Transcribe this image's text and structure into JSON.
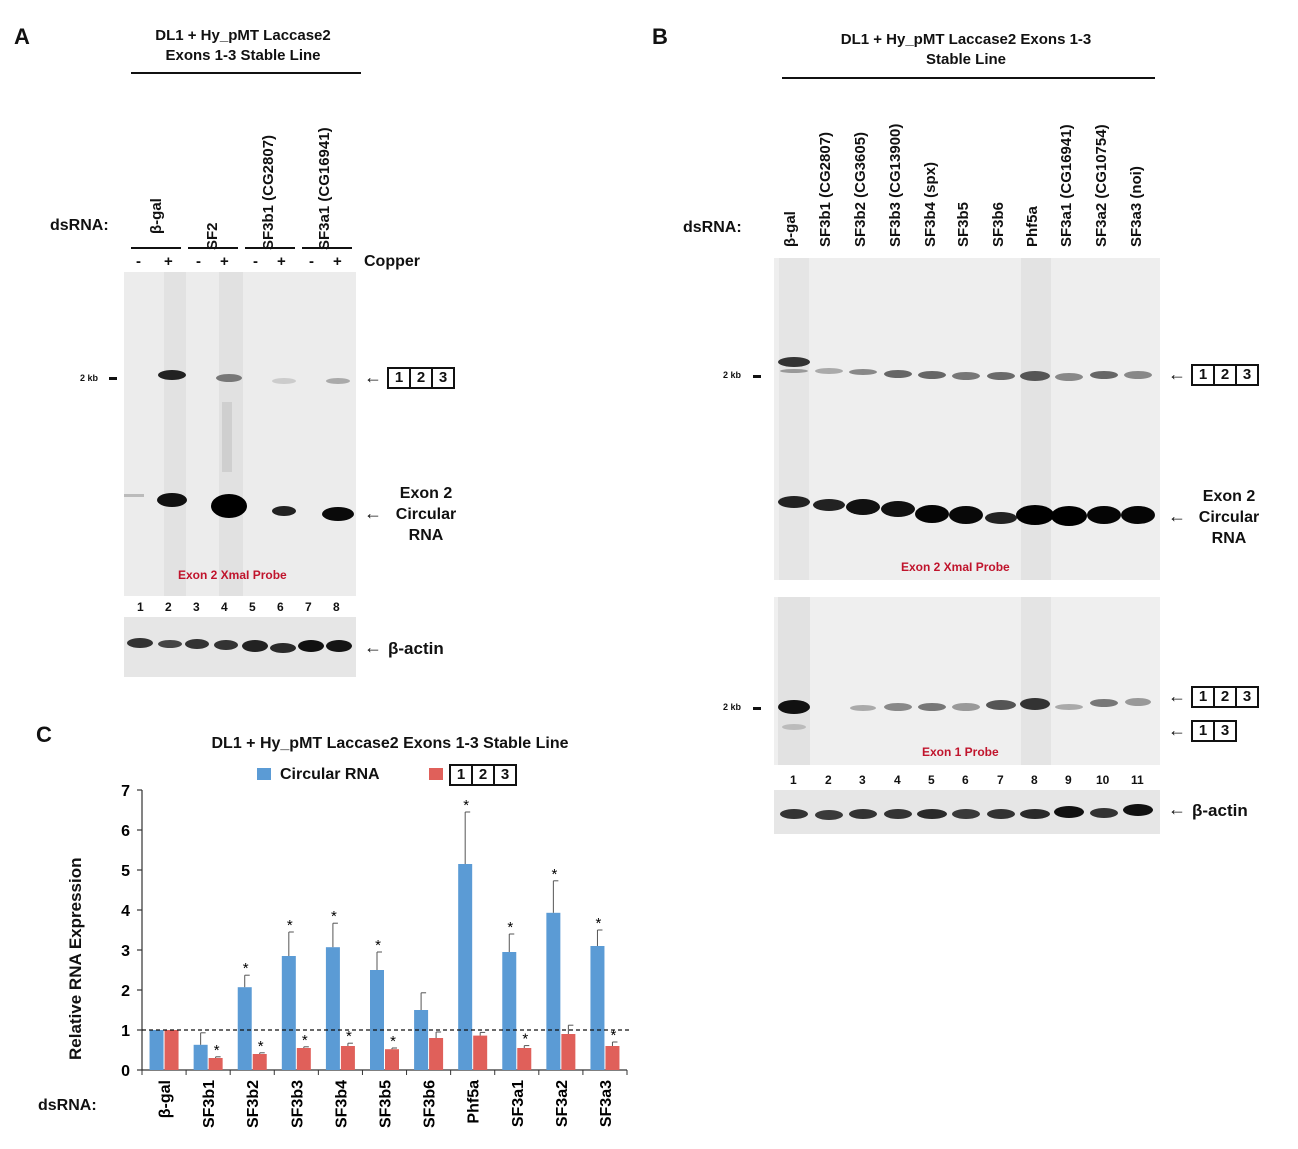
{
  "panel_a": {
    "letter": "A",
    "title_line1": "DL1 + Hy_pMT Laccase2",
    "title_line2": "Exons 1-3 Stable Line",
    "dsrna_label": "dsRNA:",
    "groups": [
      "β-gal",
      "SF2",
      "SF3b1 (CG2807)",
      "SF3a1 (CG16941)"
    ],
    "copper_signs": [
      "-",
      "+",
      "-",
      "+",
      "-",
      "+",
      "-",
      "+"
    ],
    "copper_label": "Copper",
    "marker": "2 kb",
    "linear_box": [
      "1",
      "2",
      "3"
    ],
    "circ_line1": "Exon 2",
    "circ_line2": "Circular",
    "circ_line3": "RNA",
    "probe": "Exon 2 XmaI Probe",
    "lanes": [
      "1",
      "2",
      "3",
      "4",
      "5",
      "6",
      "7",
      "8"
    ],
    "actin_label": "β-actin"
  },
  "panel_b": {
    "letter": "B",
    "title_line1": "DL1 + Hy_pMT Laccase2 Exons 1-3",
    "title_line2": "Stable Line",
    "dsrna_label": "dsRNA:",
    "lane_labels": [
      "β-gal",
      "SF3b1 (CG2807)",
      "SF3b2 (CG3605)",
      "SF3b3 (CG13900)",
      "SF3b4 (spx)",
      "SF3b5",
      "SF3b6",
      "Phf5a",
      "SF3a1 (CG16941)",
      "SF3a2 (CG10754)",
      "SF3a3 (noi)"
    ],
    "marker_top": "2 kb",
    "marker_bottom": "2 kb",
    "linear_box": [
      "1",
      "2",
      "3"
    ],
    "skip_box": [
      "1",
      "3"
    ],
    "circ_line1": "Exon 2",
    "circ_line2": "Circular",
    "circ_line3": "RNA",
    "probe_top": "Exon 2 XmaI Probe",
    "probe_bottom": "Exon 1 Probe",
    "lanes": [
      "1",
      "2",
      "3",
      "4",
      "5",
      "6",
      "7",
      "8",
      "9",
      "10",
      "11"
    ],
    "actin_label": "β-actin"
  },
  "panel_c": {
    "letter": "C",
    "dsrna_label": "dsRNA:"
  },
  "chart_data": {
    "type": "bar",
    "title": "DL1 + Hy_pMT Laccase2 Exons 1-3 Stable Line",
    "ylabel": "Relative RNA Expression",
    "xlabel": "",
    "ylim": [
      0,
      7
    ],
    "yticks": [
      "0",
      "1",
      "2",
      "3",
      "4",
      "5",
      "6",
      "7"
    ],
    "reference_line": 1,
    "categories": [
      "β-gal",
      "SF3b1",
      "SF3b2",
      "SF3b3",
      "SF3b4",
      "SF3b5",
      "SF3b6",
      "Phf5a",
      "SF3a1",
      "SF3a2",
      "SF3a3"
    ],
    "legend_circ": "Circular RNA",
    "legend_linear_box": [
      "1",
      "2",
      "3"
    ],
    "series": [
      {
        "name": "Circular RNA",
        "color": "#5b9bd5",
        "values": [
          1.0,
          0.63,
          2.07,
          2.85,
          3.07,
          2.5,
          1.5,
          5.15,
          2.95,
          3.93,
          3.1
        ],
        "errors": [
          0,
          0.3,
          0.3,
          0.6,
          0.6,
          0.45,
          0.43,
          1.3,
          0.45,
          0.8,
          0.4
        ],
        "sig": [
          "",
          "",
          "*",
          "*",
          "*",
          "*",
          "",
          "*",
          "*",
          "*",
          "*"
        ]
      },
      {
        "name": "123",
        "color": "#e0605a",
        "values": [
          1.0,
          0.3,
          0.4,
          0.55,
          0.6,
          0.52,
          0.8,
          0.86,
          0.55,
          0.9,
          0.6
        ],
        "errors": [
          0,
          0.03,
          0.03,
          0.03,
          0.07,
          0.03,
          0.15,
          0.08,
          0.06,
          0.22,
          0.1
        ],
        "sig": [
          "",
          "*",
          "*",
          "*",
          "*",
          "*",
          "",
          "",
          "*",
          "",
          "*"
        ]
      }
    ]
  }
}
